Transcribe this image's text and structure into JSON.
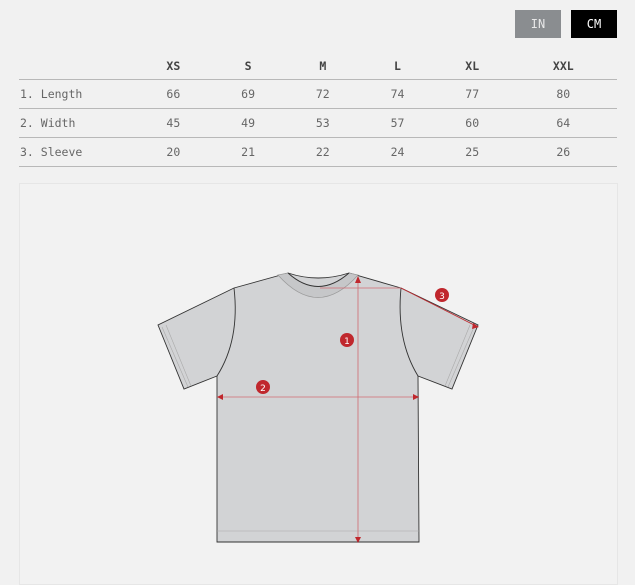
{
  "units": {
    "in_label": "IN",
    "cm_label": "CM",
    "selected": "CM"
  },
  "table": {
    "headers": [
      "",
      "XS",
      "S",
      "M",
      "L",
      "XL",
      "XXL"
    ],
    "rows": [
      {
        "label": "1. Length",
        "values": [
          "66",
          "69",
          "72",
          "74",
          "77",
          "80"
        ]
      },
      {
        "label": "2. Width",
        "values": [
          "45",
          "49",
          "53",
          "57",
          "60",
          "64"
        ]
      },
      {
        "label": "3. Sleeve",
        "values": [
          "20",
          "21",
          "22",
          "24",
          "25",
          "26"
        ]
      }
    ]
  },
  "diagram": {
    "markers": [
      "1",
      "2",
      "3"
    ],
    "accent": "#c0272d",
    "shirt_color": "#d2d3d5"
  }
}
